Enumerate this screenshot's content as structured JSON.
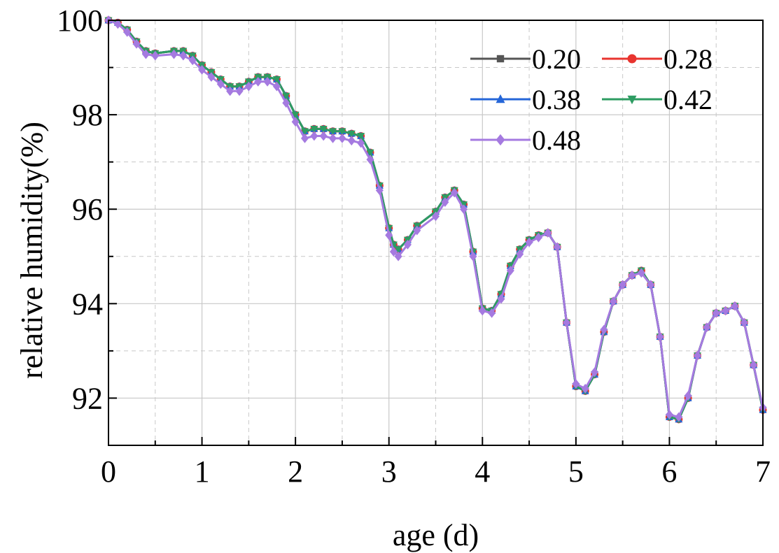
{
  "chart_data": {
    "type": "line",
    "title": "",
    "xlabel": "age (d)",
    "ylabel": "relative humidity(%)",
    "xlim": [
      0,
      7
    ],
    "ylim": [
      91,
      100
    ],
    "xticks": [
      0,
      1,
      2,
      3,
      4,
      5,
      6,
      7
    ],
    "xtick_labels": [
      "0",
      "1",
      "2",
      "3",
      "4",
      "5",
      "6",
      "7"
    ],
    "yticks": [
      92,
      94,
      96,
      98,
      100
    ],
    "ytick_labels": [
      "92",
      "94",
      "96",
      "98",
      "100"
    ],
    "grid": true,
    "legend_position": "top-right",
    "x": [
      0,
      0.1,
      0.2,
      0.3,
      0.4,
      0.5,
      0.7,
      0.8,
      0.9,
      1.0,
      1.1,
      1.2,
      1.3,
      1.4,
      1.5,
      1.6,
      1.7,
      1.8,
      1.9,
      2.0,
      2.1,
      2.2,
      2.3,
      2.4,
      2.5,
      2.6,
      2.7,
      2.8,
      2.9,
      3.0,
      3.05,
      3.1,
      3.2,
      3.3,
      3.5,
      3.6,
      3.7,
      3.8,
      3.9,
      4.0,
      4.1,
      4.2,
      4.3,
      4.4,
      4.5,
      4.6,
      4.7,
      4.8,
      4.9,
      5.0,
      5.1,
      5.2,
      5.3,
      5.4,
      5.5,
      5.6,
      5.7,
      5.8,
      5.9,
      6.0,
      6.1,
      6.2,
      6.3,
      6.4,
      6.5,
      6.6,
      6.7,
      6.8,
      6.9,
      7.0
    ],
    "series": [
      {
        "name": "0.20",
        "color": "#555555",
        "marker": "square",
        "values": [
          100,
          99.95,
          99.8,
          99.55,
          99.35,
          99.3,
          99.35,
          99.35,
          99.25,
          99.05,
          98.9,
          98.75,
          98.6,
          98.6,
          98.7,
          98.8,
          98.8,
          98.75,
          98.4,
          98.0,
          97.65,
          97.7,
          97.7,
          97.65,
          97.65,
          97.6,
          97.55,
          97.2,
          96.5,
          95.6,
          95.25,
          95.15,
          95.35,
          95.65,
          95.95,
          96.25,
          96.4,
          96.1,
          95.1,
          93.9,
          93.85,
          94.2,
          94.8,
          95.15,
          95.35,
          95.45,
          95.5,
          95.2,
          93.6,
          92.25,
          92.15,
          92.5,
          93.4,
          94.05,
          94.4,
          94.6,
          94.7,
          94.4,
          93.3,
          91.6,
          91.55,
          92.0,
          92.9,
          93.5,
          93.8,
          93.85,
          93.95,
          93.6,
          92.7,
          91.75
        ]
      },
      {
        "name": "0.28",
        "color": "#e8342f",
        "marker": "circle",
        "values": [
          100,
          99.95,
          99.8,
          99.55,
          99.35,
          99.3,
          99.35,
          99.35,
          99.25,
          99.05,
          98.9,
          98.75,
          98.6,
          98.6,
          98.7,
          98.8,
          98.8,
          98.75,
          98.4,
          98.0,
          97.65,
          97.7,
          97.7,
          97.65,
          97.65,
          97.6,
          97.55,
          97.2,
          96.5,
          95.6,
          95.25,
          95.15,
          95.35,
          95.65,
          95.95,
          96.25,
          96.4,
          96.1,
          95.1,
          93.9,
          93.85,
          94.2,
          94.8,
          95.15,
          95.35,
          95.45,
          95.5,
          95.2,
          93.6,
          92.25,
          92.15,
          92.5,
          93.4,
          94.05,
          94.4,
          94.6,
          94.7,
          94.4,
          93.3,
          91.6,
          91.55,
          92.0,
          92.9,
          93.5,
          93.8,
          93.85,
          93.95,
          93.6,
          92.7,
          91.75
        ]
      },
      {
        "name": "0.38",
        "color": "#2566d8",
        "marker": "triangle-up",
        "values": [
          100,
          99.95,
          99.8,
          99.55,
          99.35,
          99.3,
          99.35,
          99.35,
          99.25,
          99.05,
          98.9,
          98.75,
          98.6,
          98.6,
          98.7,
          98.8,
          98.8,
          98.75,
          98.4,
          98.0,
          97.65,
          97.7,
          97.7,
          97.65,
          97.65,
          97.6,
          97.55,
          97.2,
          96.5,
          95.6,
          95.25,
          95.15,
          95.35,
          95.65,
          95.95,
          96.25,
          96.4,
          96.1,
          95.1,
          93.9,
          93.85,
          94.2,
          94.8,
          95.15,
          95.35,
          95.45,
          95.5,
          95.2,
          93.6,
          92.25,
          92.15,
          92.5,
          93.4,
          94.05,
          94.4,
          94.6,
          94.7,
          94.4,
          93.3,
          91.6,
          91.55,
          92.0,
          92.9,
          93.5,
          93.8,
          93.85,
          93.95,
          93.6,
          92.7,
          91.75
        ]
      },
      {
        "name": "0.42",
        "color": "#2e9c62",
        "marker": "triangle-down",
        "values": [
          100,
          99.95,
          99.8,
          99.55,
          99.35,
          99.3,
          99.35,
          99.35,
          99.25,
          99.05,
          98.9,
          98.75,
          98.6,
          98.6,
          98.7,
          98.8,
          98.8,
          98.75,
          98.4,
          98.0,
          97.65,
          97.7,
          97.7,
          97.65,
          97.65,
          97.6,
          97.55,
          97.2,
          96.5,
          95.6,
          95.25,
          95.15,
          95.35,
          95.65,
          95.95,
          96.25,
          96.4,
          96.1,
          95.1,
          93.9,
          93.85,
          94.2,
          94.8,
          95.15,
          95.35,
          95.45,
          95.5,
          95.2,
          93.6,
          92.25,
          92.15,
          92.5,
          93.4,
          94.05,
          94.4,
          94.6,
          94.7,
          94.4,
          93.3,
          91.6,
          91.55,
          92.0,
          92.9,
          93.5,
          93.8,
          93.85,
          93.95,
          93.6,
          92.7,
          91.75
        ]
      },
      {
        "name": "0.48",
        "color": "#a57ae0",
        "marker": "diamond",
        "values": [
          100,
          99.92,
          99.75,
          99.5,
          99.28,
          99.25,
          99.28,
          99.25,
          99.15,
          98.95,
          98.8,
          98.65,
          98.5,
          98.5,
          98.6,
          98.7,
          98.7,
          98.6,
          98.25,
          97.85,
          97.5,
          97.55,
          97.55,
          97.5,
          97.5,
          97.45,
          97.4,
          97.05,
          96.4,
          95.45,
          95.1,
          95.0,
          95.25,
          95.55,
          95.85,
          96.15,
          96.35,
          96.0,
          95.0,
          93.85,
          93.8,
          94.1,
          94.7,
          95.05,
          95.3,
          95.4,
          95.5,
          95.2,
          93.6,
          92.3,
          92.2,
          92.55,
          93.45,
          94.05,
          94.4,
          94.6,
          94.65,
          94.4,
          93.3,
          91.65,
          91.6,
          92.05,
          92.9,
          93.5,
          93.8,
          93.85,
          93.95,
          93.6,
          92.7,
          91.8
        ]
      }
    ]
  }
}
